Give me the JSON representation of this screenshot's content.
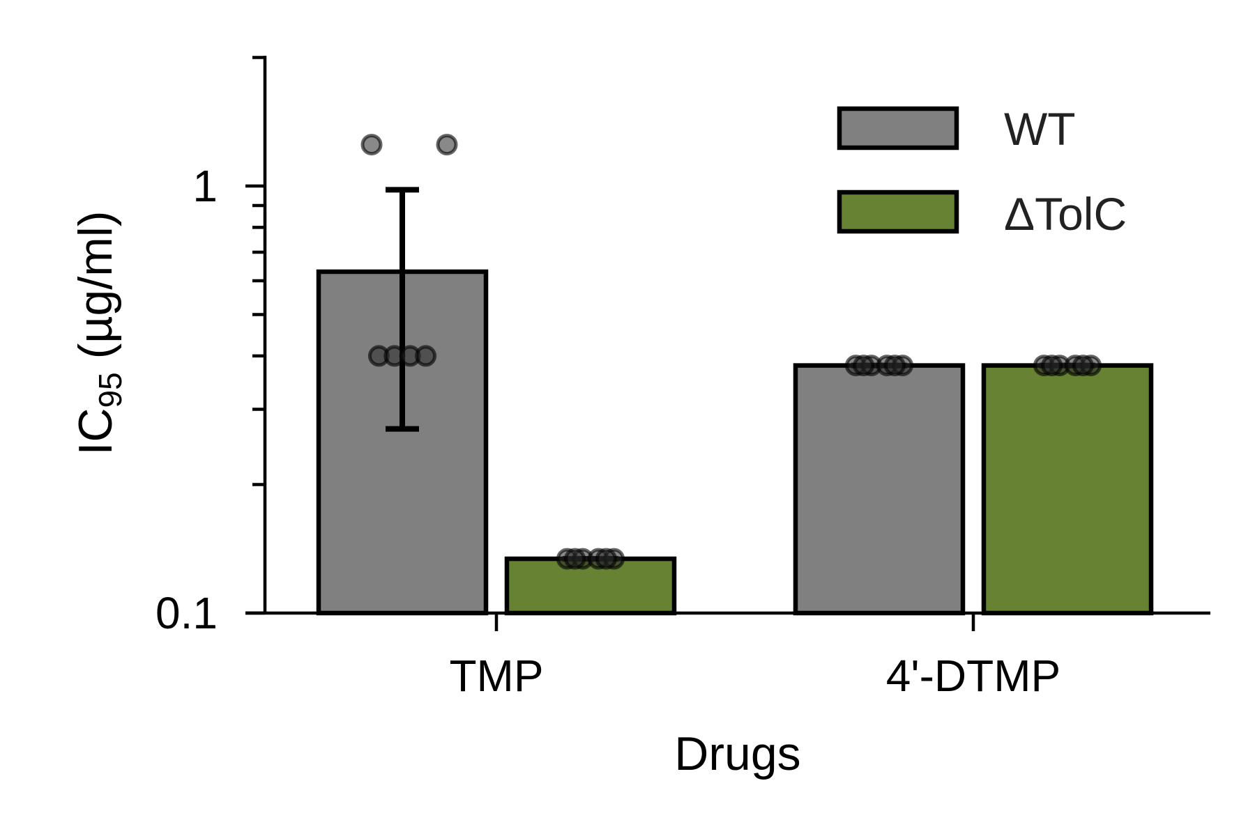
{
  "chart_data": {
    "type": "bar",
    "title": "",
    "xlabel": "Drugs",
    "ylabel": "IC",
    "ylabel_subscript": "95",
    "ylabel_unit": " (µg/ml)",
    "yscale": "log",
    "ylim": [
      0.1,
      2
    ],
    "yticks": [
      {
        "value": 0.1,
        "label": "0.1"
      },
      {
        "value": 1,
        "label": "1"
      }
    ],
    "yminor_ticks": [
      0.2,
      0.3,
      0.4,
      0.5,
      0.6,
      0.7,
      0.8,
      0.9,
      2
    ],
    "categories": [
      "TMP",
      "4'-DTMP"
    ],
    "grid": false,
    "legend_position": "top-right",
    "series": [
      {
        "name": "WT",
        "color": "#808080",
        "values": [
          0.63,
          0.38
        ],
        "error": [
          [
            0.27,
            0.98
          ],
          null
        ],
        "points": [
          [
            1.25,
            1.25,
            0.4,
            0.4,
            0.4,
            0.4
          ],
          [
            0.38,
            0.38,
            0.38,
            0.38,
            0.38,
            0.38
          ]
        ]
      },
      {
        "name": "ΔTolC",
        "color": "#668232",
        "values": [
          0.134,
          0.38
        ],
        "error": [
          null,
          null
        ],
        "points": [
          [
            0.134,
            0.134,
            0.134,
            0.134,
            0.134,
            0.134
          ],
          [
            0.38,
            0.38,
            0.38,
            0.38,
            0.38,
            0.38
          ]
        ]
      }
    ]
  }
}
